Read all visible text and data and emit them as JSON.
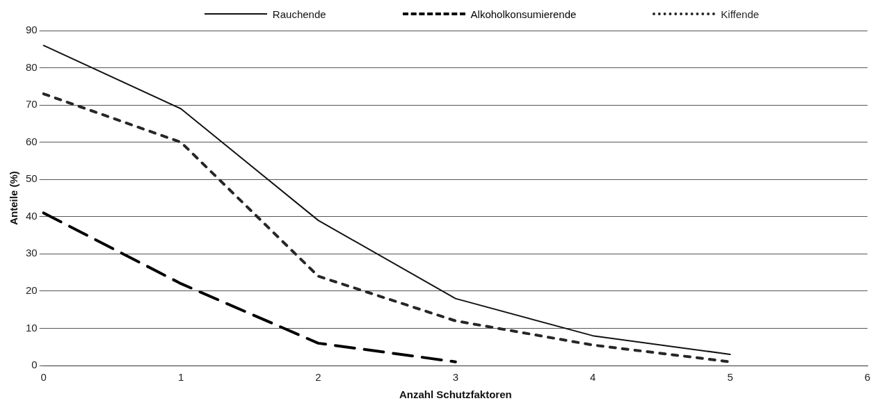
{
  "chart_data": {
    "type": "line",
    "xlabel": "Anzahl Schutzfaktoren",
    "ylabel": "Anteile (%)",
    "x": [
      0,
      1,
      2,
      3,
      4,
      5
    ],
    "series": [
      {
        "name": "Rauchende",
        "color": "#111111",
        "line_style": "solid",
        "values": [
          86,
          69,
          39,
          18,
          8,
          3
        ]
      },
      {
        "name": "Alkoholkonsumierende",
        "color": "#000000",
        "line_style": "dashed",
        "values": [
          41,
          22,
          6,
          1,
          null,
          null
        ]
      },
      {
        "name": "Kiffende",
        "color": "#262626",
        "line_style": "dotted",
        "values": [
          73,
          60,
          24,
          12,
          5.5,
          1
        ]
      }
    ],
    "xlim": [
      0,
      6
    ],
    "xticks": [
      0,
      1,
      2,
      3,
      4,
      5,
      6
    ],
    "ylim": [
      0,
      90
    ],
    "yticks": [
      0,
      10,
      20,
      30,
      40,
      50,
      60,
      70,
      80,
      90
    ],
    "grid": "y",
    "legend": "top",
    "marker": "none"
  }
}
